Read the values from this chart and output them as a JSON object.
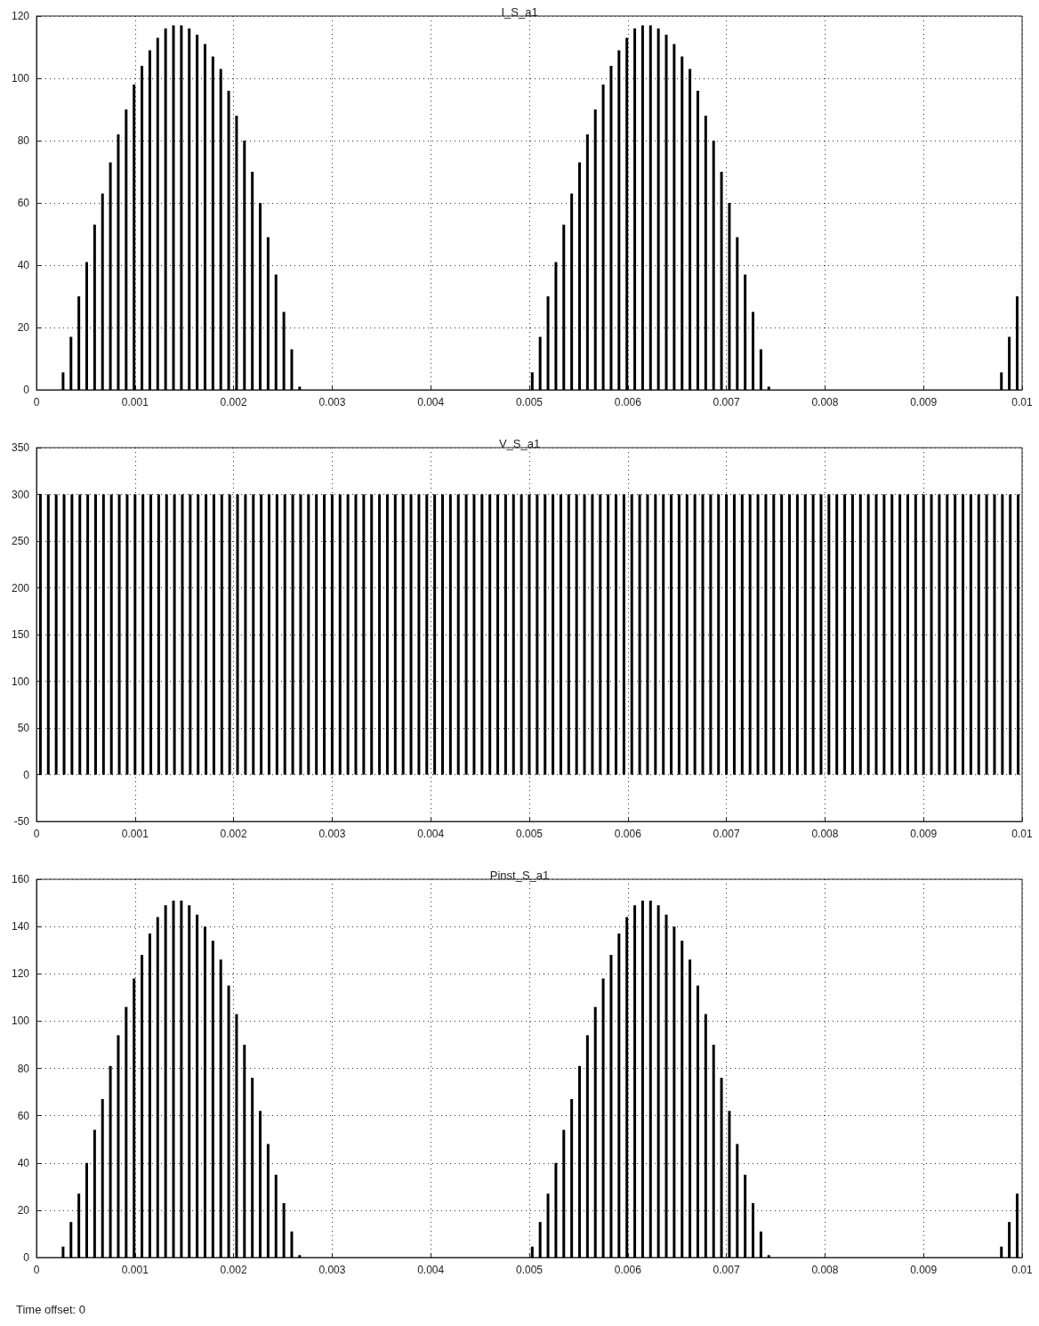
{
  "chart_data": [
    {
      "type": "bar",
      "title": "I_S_a1",
      "color": "#000000",
      "x": [
        0.00027,
        0.00035,
        0.00043,
        0.00051,
        0.00059,
        0.00067,
        0.00075,
        0.00083,
        0.00091,
        0.00099,
        0.00107,
        0.00115,
        0.00123,
        0.00131,
        0.00139,
        0.00147,
        0.00155,
        0.00163,
        0.00171,
        0.00179,
        0.00187,
        0.00195,
        0.00203,
        0.00211,
        0.00219,
        0.00227,
        0.00235,
        0.00243,
        0.00251,
        0.00259,
        0.00267,
        0.00503,
        0.00511,
        0.00519,
        0.00527,
        0.00535,
        0.00543,
        0.00551,
        0.00559,
        0.00567,
        0.00575,
        0.00583,
        0.00591,
        0.00599,
        0.00607,
        0.00615,
        0.00623,
        0.00631,
        0.00639,
        0.00647,
        0.00655,
        0.00663,
        0.00671,
        0.00679,
        0.00687,
        0.00695,
        0.00703,
        0.00711,
        0.00719,
        0.00727,
        0.00735,
        0.00743,
        0.00979,
        0.00987,
        0.00995
      ],
      "values": [
        5.6,
        17,
        30,
        41,
        53,
        63,
        73,
        82,
        90,
        98,
        104,
        109,
        113,
        116,
        117,
        117,
        116,
        114,
        111,
        107,
        103,
        96,
        88,
        80,
        70,
        60,
        49,
        37,
        25,
        13,
        1,
        5.6,
        17,
        30,
        41,
        53,
        63,
        73,
        82,
        90,
        98,
        104,
        109,
        113,
        116,
        117,
        117,
        116,
        114,
        111,
        107,
        103,
        96,
        88,
        80,
        70,
        60,
        49,
        37,
        25,
        13,
        1,
        5.6,
        17,
        30
      ],
      "xlim": [
        0,
        0.01
      ],
      "xticks": [
        0,
        0.001,
        0.002,
        0.003,
        0.004,
        0.005,
        0.006,
        0.007,
        0.008,
        0.009,
        0.01
      ],
      "ylim": [
        0,
        120
      ],
      "yticks": [
        0,
        20,
        40,
        60,
        80,
        100,
        120
      ],
      "grid": true
    },
    {
      "type": "bar",
      "title": "V_S_a1",
      "color": "#000000",
      "x": [
        4e-05,
        0.00012,
        0.0002,
        0.00028,
        0.00036,
        0.00044,
        0.00052,
        0.0006,
        0.00068,
        0.00076,
        0.00084,
        0.00092,
        0.001,
        0.00108,
        0.00116,
        0.00124,
        0.00132,
        0.0014,
        0.00148,
        0.00156,
        0.00164,
        0.00172,
        0.0018,
        0.00188,
        0.00196,
        0.00204,
        0.00212,
        0.0022,
        0.00228,
        0.00236,
        0.00244,
        0.00252,
        0.0026,
        0.00268,
        0.00276,
        0.00284,
        0.00292,
        0.003,
        0.00308,
        0.00316,
        0.00324,
        0.00332,
        0.0034,
        0.00348,
        0.00356,
        0.00364,
        0.00372,
        0.0038,
        0.00388,
        0.00396,
        0.00404,
        0.00412,
        0.0042,
        0.00428,
        0.00436,
        0.00444,
        0.00452,
        0.0046,
        0.00468,
        0.00476,
        0.00484,
        0.00492,
        0.005,
        0.00508,
        0.00516,
        0.00524,
        0.00532,
        0.0054,
        0.00548,
        0.00556,
        0.00564,
        0.00572,
        0.0058,
        0.00588,
        0.00596,
        0.00604,
        0.00612,
        0.0062,
        0.00628,
        0.00636,
        0.00644,
        0.00652,
        0.0066,
        0.00668,
        0.00676,
        0.00684,
        0.00692,
        0.007,
        0.00708,
        0.00716,
        0.00724,
        0.00732,
        0.0074,
        0.00748,
        0.00756,
        0.00764,
        0.00772,
        0.0078,
        0.00788,
        0.00796,
        0.00804,
        0.00812,
        0.0082,
        0.00828,
        0.00836,
        0.00844,
        0.00852,
        0.0086,
        0.00868,
        0.00876,
        0.00884,
        0.00892,
        0.009,
        0.00908,
        0.00916,
        0.00924,
        0.00932,
        0.0094,
        0.00948,
        0.00956,
        0.00964,
        0.00972,
        0.0098,
        0.00988,
        0.00996
      ],
      "values": [
        300,
        300,
        300,
        300,
        300,
        300,
        300,
        300,
        300,
        300,
        300,
        300,
        300,
        300,
        300,
        300,
        300,
        300,
        300,
        300,
        300,
        300,
        300,
        300,
        300,
        300,
        300,
        300,
        300,
        300,
        300,
        300,
        300,
        300,
        300,
        300,
        300,
        300,
        300,
        300,
        300,
        300,
        300,
        300,
        300,
        300,
        300,
        300,
        300,
        300,
        300,
        300,
        300,
        300,
        300,
        300,
        300,
        300,
        300,
        300,
        300,
        300,
        300,
        300,
        300,
        300,
        300,
        300,
        300,
        300,
        300,
        300,
        300,
        300,
        300,
        300,
        300,
        300,
        300,
        300,
        300,
        300,
        300,
        300,
        300,
        300,
        300,
        300,
        300,
        300,
        300,
        300,
        300,
        300,
        300,
        300,
        300,
        300,
        300,
        300,
        300,
        300,
        300,
        300,
        300,
        300,
        300,
        300,
        300,
        300,
        300,
        300,
        300,
        300,
        300,
        300,
        300,
        300,
        300,
        300,
        300,
        300,
        300,
        300,
        300
      ],
      "xlim": [
        0,
        0.01
      ],
      "xticks": [
        0,
        0.001,
        0.002,
        0.003,
        0.004,
        0.005,
        0.006,
        0.007,
        0.008,
        0.009,
        0.01
      ],
      "ylim": [
        -50,
        350
      ],
      "yticks": [
        -50,
        0,
        50,
        100,
        150,
        200,
        250,
        300,
        350
      ],
      "grid": true
    },
    {
      "type": "bar",
      "title": "Pinst_S_a1",
      "color": "#000000",
      "annotations": [
        "Time offset: 0"
      ],
      "x": [
        0.00027,
        0.00035,
        0.00043,
        0.00051,
        0.00059,
        0.00067,
        0.00075,
        0.00083,
        0.00091,
        0.00099,
        0.00107,
        0.00115,
        0.00123,
        0.00131,
        0.00139,
        0.00147,
        0.00155,
        0.00163,
        0.00171,
        0.00179,
        0.00187,
        0.00195,
        0.00203,
        0.00211,
        0.00219,
        0.00227,
        0.00235,
        0.00243,
        0.00251,
        0.00259,
        0.00267,
        0.00503,
        0.00511,
        0.00519,
        0.00527,
        0.00535,
        0.00543,
        0.00551,
        0.00559,
        0.00567,
        0.00575,
        0.00583,
        0.00591,
        0.00599,
        0.00607,
        0.00615,
        0.00623,
        0.00631,
        0.00639,
        0.00647,
        0.00655,
        0.00663,
        0.00671,
        0.00679,
        0.00687,
        0.00695,
        0.00703,
        0.00711,
        0.00719,
        0.00727,
        0.00735,
        0.00743,
        0.00979,
        0.00987,
        0.00995
      ],
      "values": [
        4.6,
        15,
        27,
        40,
        54,
        67,
        81,
        94,
        106,
        118,
        128,
        137,
        144,
        149,
        151,
        151,
        149,
        145,
        140,
        134,
        126,
        115,
        103,
        90,
        76,
        62,
        48,
        35,
        23,
        11,
        1,
        4.6,
        15,
        27,
        40,
        54,
        67,
        81,
        94,
        106,
        118,
        128,
        137,
        144,
        149,
        151,
        151,
        149,
        145,
        140,
        134,
        126,
        115,
        103,
        90,
        76,
        62,
        48,
        35,
        23,
        11,
        1,
        4.6,
        15,
        27
      ],
      "xlim": [
        0,
        0.01
      ],
      "xticks": [
        0,
        0.001,
        0.002,
        0.003,
        0.004,
        0.005,
        0.006,
        0.007,
        0.008,
        0.009,
        0.01
      ],
      "ylim": [
        0,
        160
      ],
      "yticks": [
        0,
        20,
        40,
        60,
        80,
        100,
        120,
        140,
        160
      ],
      "grid": true
    }
  ]
}
